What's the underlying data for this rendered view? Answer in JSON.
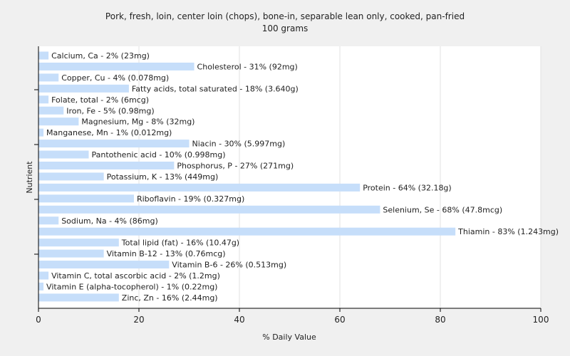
{
  "chart_data": {
    "type": "bar",
    "orientation": "horizontal",
    "title": "Pork, fresh, loin, center loin (chops), bone-in, separable lean only, cooked, pan-fried",
    "subtitle": "100 grams",
    "xlabel": "% Daily Value",
    "ylabel": "Nutrient",
    "xlim": [
      0,
      100
    ],
    "xticks": [
      0,
      20,
      40,
      60,
      80,
      100
    ],
    "grid": true,
    "bar_color": "#c6defa",
    "categories": [
      "Calcium, Ca",
      "Cholesterol",
      "Copper, Cu",
      "Fatty acids, total saturated",
      "Folate, total",
      "Iron, Fe",
      "Magnesium, Mg",
      "Manganese, Mn",
      "Niacin",
      "Pantothenic acid",
      "Phosphorus, P",
      "Potassium, K",
      "Protein",
      "Riboflavin",
      "Selenium, Se",
      "Sodium, Na",
      "Thiamin",
      "Total lipid (fat)",
      "Vitamin B-12",
      "Vitamin B-6",
      "Vitamin C, total ascorbic acid",
      "Vitamin E (alpha-tocopherol)",
      "Zinc, Zn"
    ],
    "values": [
      2,
      31,
      4,
      18,
      2,
      5,
      8,
      1,
      30,
      10,
      27,
      13,
      64,
      19,
      68,
      4,
      83,
      16,
      13,
      26,
      2,
      1,
      16
    ],
    "labels": [
      "Calcium, Ca - 2% (23mg)",
      "Cholesterol - 31% (92mg)",
      "Copper, Cu - 4% (0.078mg)",
      "Fatty acids, total saturated - 18% (3.640g)",
      "Folate, total - 2% (6mcg)",
      "Iron, Fe - 5% (0.98mg)",
      "Magnesium, Mg - 8% (32mg)",
      "Manganese, Mn - 1% (0.012mg)",
      "Niacin - 30% (5.997mg)",
      "Pantothenic acid - 10% (0.998mg)",
      "Phosphorus, P - 27% (271mg)",
      "Potassium, K - 13% (449mg)",
      "Protein - 64% (32.18g)",
      "Riboflavin - 19% (0.327mg)",
      "Selenium, Se - 68% (47.8mcg)",
      "Sodium, Na - 4% (86mg)",
      "Thiamin - 83% (1.243mg)",
      "Total lipid (fat) - 16% (10.47g)",
      "Vitamin B-12 - 13% (0.76mcg)",
      "Vitamin B-6 - 26% (0.513mg)",
      "Vitamin C, total ascorbic acid - 2% (1.2mg)",
      "Vitamin E (alpha-tocopherol) - 1% (0.22mg)",
      "Zinc, Zn - 16% (2.44mg)"
    ]
  }
}
